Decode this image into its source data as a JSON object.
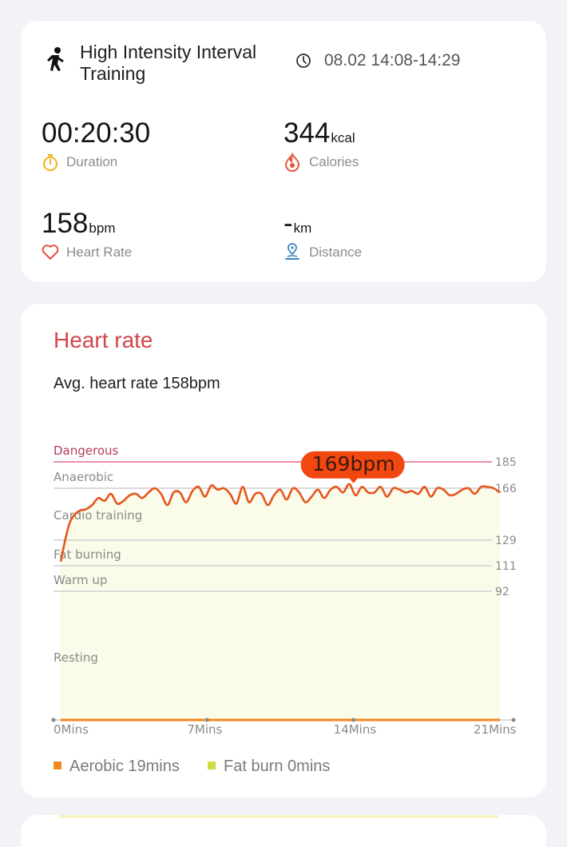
{
  "summary": {
    "workout_title": "High Intensity Interval Training",
    "datetime": "08.02 14:08-14:29",
    "metrics": {
      "duration": {
        "value": "00:20:30",
        "unit": "",
        "label": "Duration"
      },
      "calories": {
        "value": "344",
        "unit": "kcal",
        "label": "Calories"
      },
      "heart_rate": {
        "value": "158",
        "unit": "bpm",
        "label": "Heart Rate"
      },
      "distance": {
        "value": "-",
        "unit": "km",
        "label": "Distance"
      }
    },
    "icons": [
      "running-icon",
      "clock-icon",
      "stopwatch-icon",
      "flame-icon",
      "heart-icon",
      "location-pin-icon"
    ]
  },
  "heart_rate_card": {
    "title": "Heart rate",
    "avg_text": "Avg. heart rate 158bpm",
    "legend": [
      {
        "label": "Aerobic 19mins",
        "color": "#f28a1e"
      },
      {
        "label": "Fat burn 0mins",
        "color": "#cfdc46"
      }
    ]
  },
  "chart_data": {
    "type": "line",
    "title": "",
    "xlabel": "",
    "ylabel": "",
    "x_ticks": [
      "0Mins",
      "7Mins",
      "14Mins",
      "21Mins"
    ],
    "xlim": [
      0,
      21
    ],
    "ylim": [
      0,
      185
    ],
    "zones": [
      {
        "name": "Dangerous",
        "threshold": 185,
        "color": "#e46a86"
      },
      {
        "name": "Anaerobic",
        "threshold": 166,
        "color": "#cfcfcf"
      },
      {
        "name": "Cardio training",
        "threshold": 129,
        "color": "#cfcfcf"
      },
      {
        "name": "Fat burning",
        "threshold": 111,
        "color": "#cfcfcf"
      },
      {
        "name": "Warm up",
        "threshold": 92,
        "color": "#cfcfcf"
      },
      {
        "name": "Resting",
        "threshold": null,
        "color": null
      }
    ],
    "y_ticks": [
      "185",
      "166",
      "129",
      "111",
      "92"
    ],
    "max_annotation": {
      "label": "169bpm",
      "x": 14.0,
      "y": 169
    },
    "series": [
      {
        "color": "#e5561a",
        "x": [
          0.0,
          0.2,
          0.4,
          0.6,
          0.9,
          1.2,
          1.5,
          1.8,
          2.1,
          2.4,
          2.7,
          3.0,
          3.3,
          3.6,
          3.9,
          4.2,
          4.5,
          4.8,
          5.1,
          5.4,
          5.7,
          6.0,
          6.3,
          6.6,
          6.9,
          7.2,
          7.5,
          7.8,
          8.1,
          8.4,
          8.7,
          9.0,
          9.3,
          9.6,
          9.9,
          10.2,
          10.5,
          10.8,
          11.1,
          11.4,
          11.7,
          12.0,
          12.3,
          12.6,
          12.9,
          13.2,
          13.5,
          13.8,
          14.1,
          14.4,
          14.7,
          15.0,
          15.3,
          15.6,
          15.9,
          16.2,
          16.5,
          16.8,
          17.1,
          17.4,
          17.7,
          18.0,
          18.3,
          18.6,
          18.9,
          19.2,
          19.5,
          19.8,
          20.1,
          20.4,
          20.7,
          21.0
        ],
        "y": [
          114,
          128,
          140,
          146,
          150,
          151,
          154,
          159,
          157,
          162,
          155,
          157,
          161,
          162,
          159,
          163,
          166,
          162,
          154,
          163,
          163,
          156,
          164,
          167,
          160,
          168,
          165,
          166,
          162,
          155,
          167,
          156,
          162,
          162,
          154,
          161,
          165,
          158,
          166,
          163,
          156,
          160,
          165,
          159,
          165,
          167,
          163,
          169,
          161,
          167,
          163,
          163,
          167,
          160,
          166,
          165,
          163,
          164,
          162,
          167,
          160,
          166,
          165,
          161,
          162,
          165,
          166,
          162,
          167,
          167,
          166,
          163
        ]
      }
    ]
  }
}
